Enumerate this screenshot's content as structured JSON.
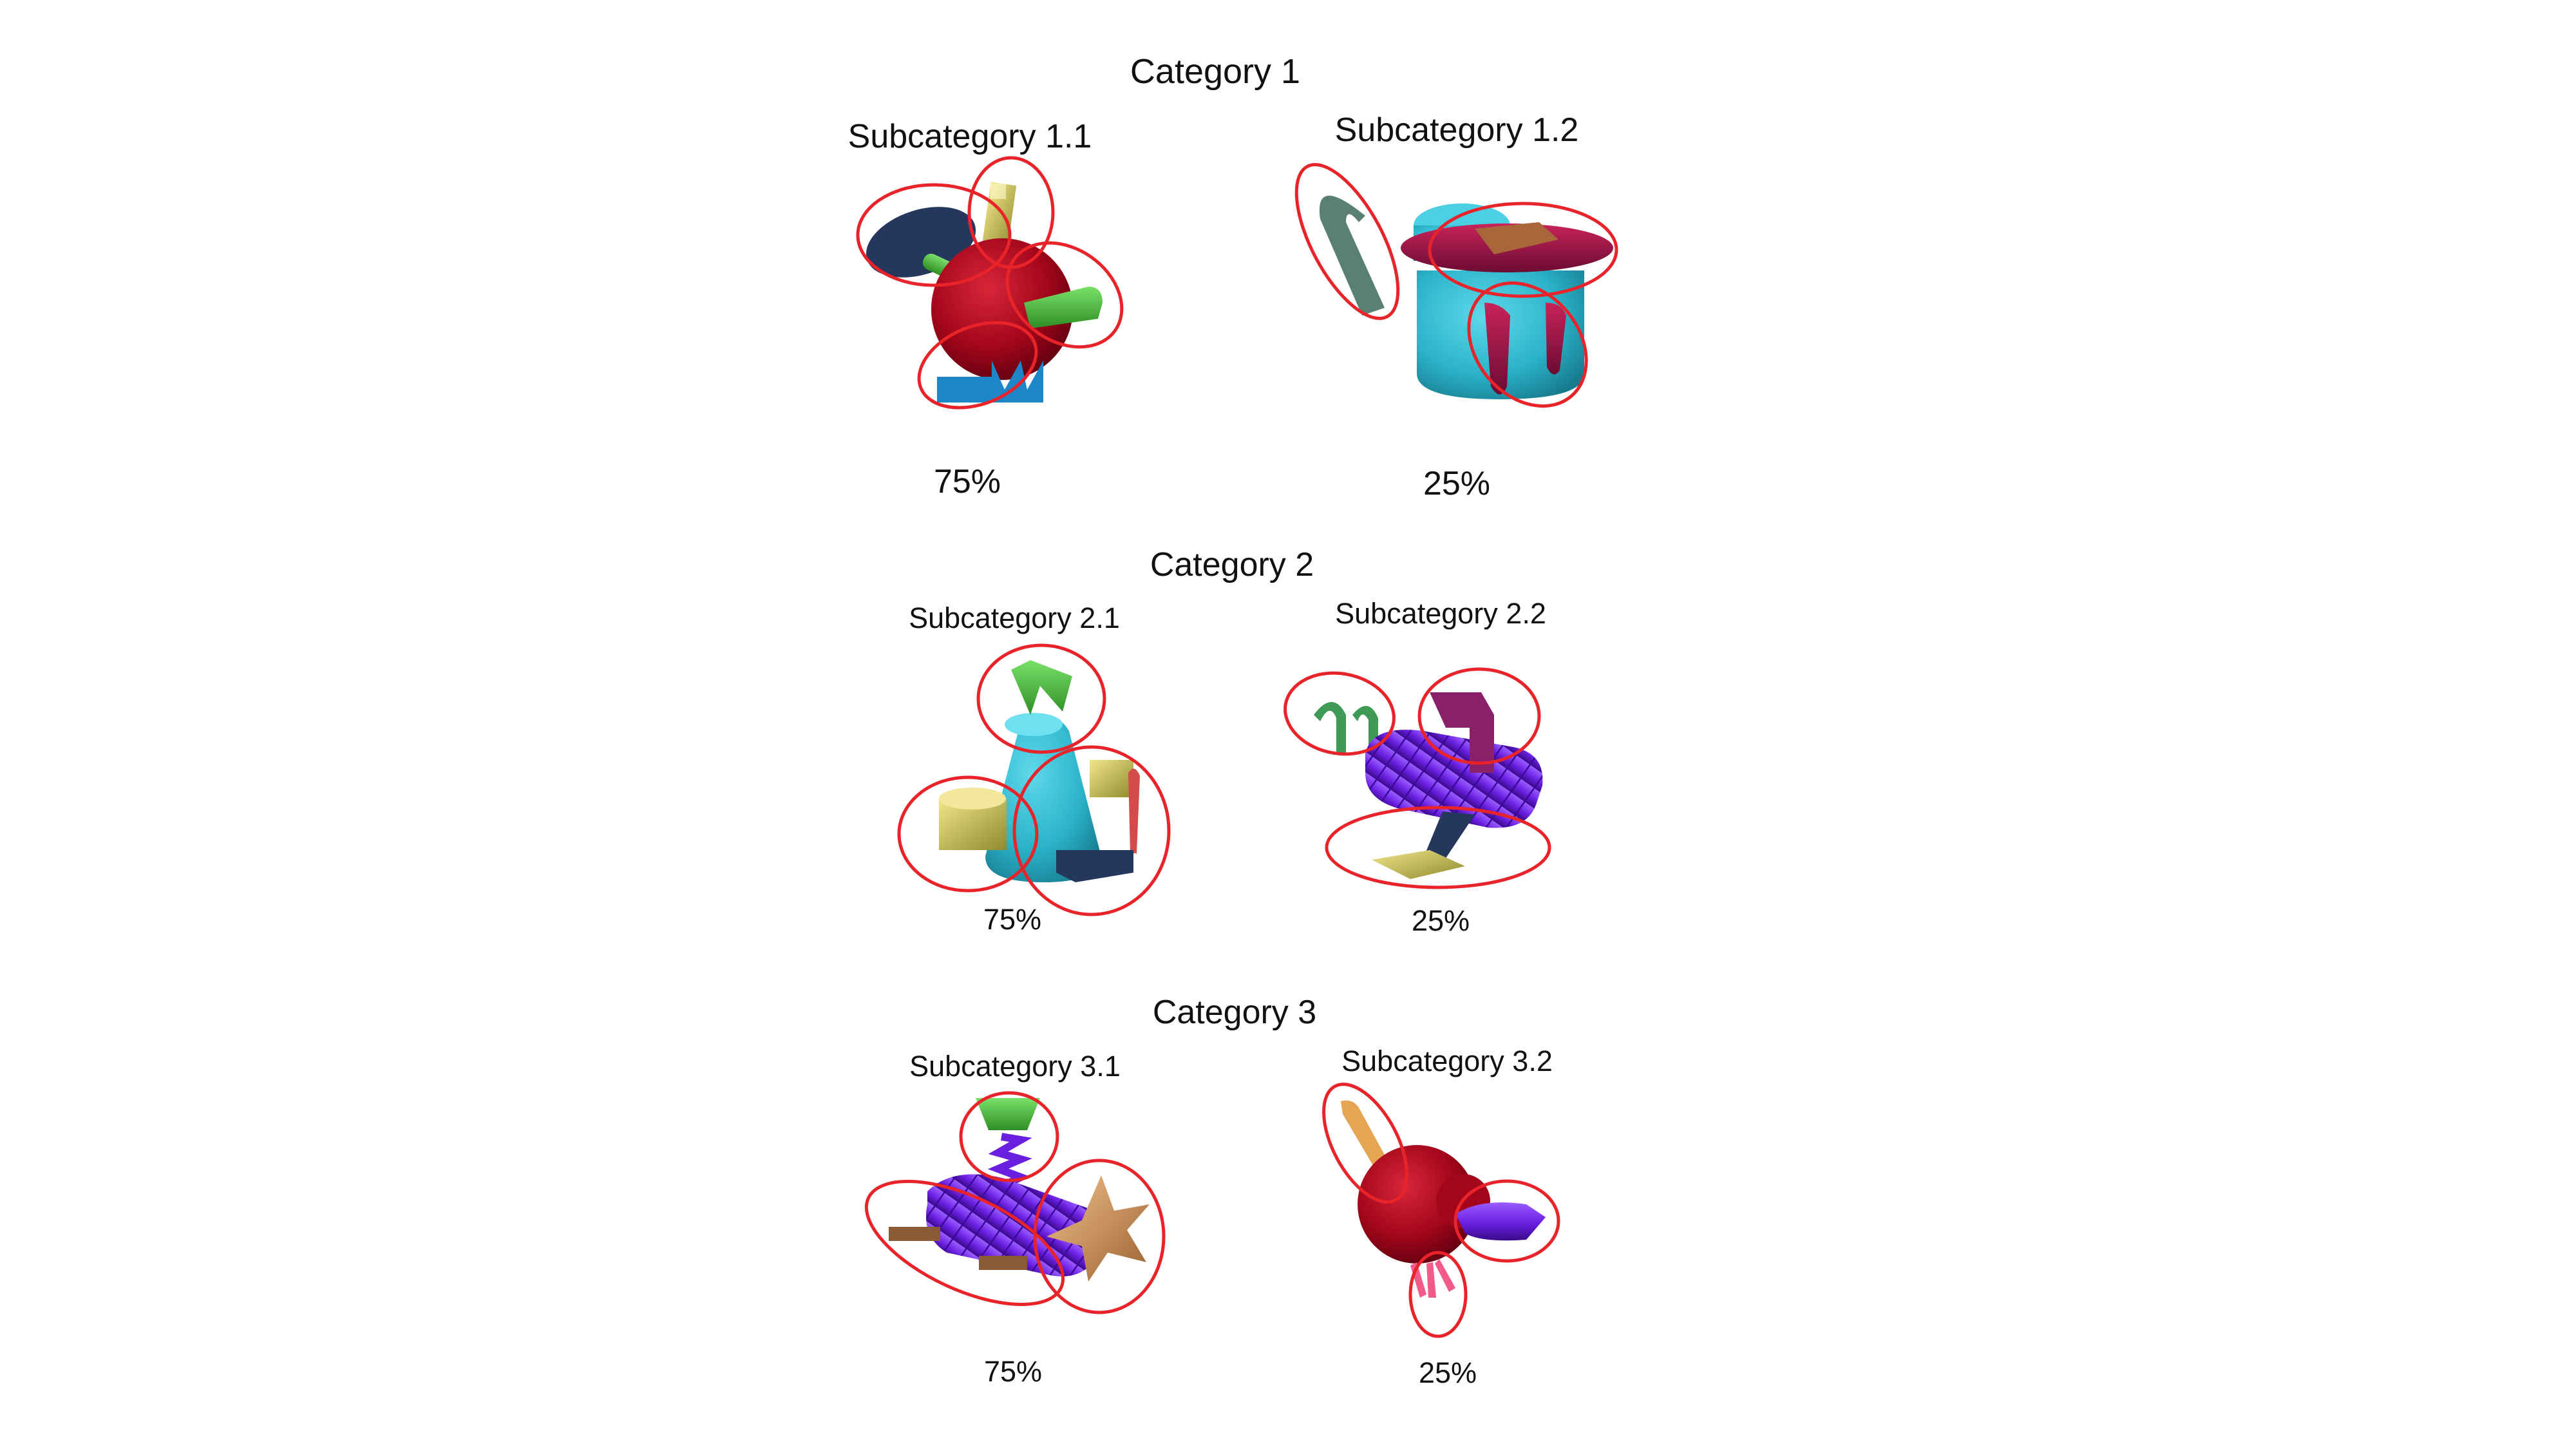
{
  "colors": {
    "outline": "#e8232a",
    "red_body": "#a3061a",
    "cyan_body": "#2bb3c9",
    "purple_body": "#6a1fe0",
    "green_part": "#3bd046",
    "olive_part": "#c2d458",
    "navy_part": "#26375e",
    "blue_part": "#1c86c9",
    "tan_part": "#c98d54",
    "magenta_part": "#8a1f6a",
    "pink_part": "#f25a8a"
  },
  "categories": [
    {
      "title": "Category 1",
      "subcategories": [
        {
          "title": "Subcategory 1.1",
          "percent": "75%",
          "object_icon": "red-sphere-assembly-icon"
        },
        {
          "title": "Subcategory 1.2",
          "percent": "25%",
          "object_icon": "cyan-teapot-assembly-icon"
        }
      ]
    },
    {
      "title": "Category 2",
      "subcategories": [
        {
          "title": "Subcategory 2.1",
          "percent": "75%",
          "object_icon": "cyan-cone-assembly-icon"
        },
        {
          "title": "Subcategory 2.2",
          "percent": "25%",
          "object_icon": "purple-tube-assembly-icon"
        }
      ]
    },
    {
      "title": "Category 3",
      "subcategories": [
        {
          "title": "Subcategory 3.1",
          "percent": "75%",
          "object_icon": "purple-tube-star-assembly-icon"
        },
        {
          "title": "Subcategory 3.2",
          "percent": "25%",
          "object_icon": "red-sphere-horn-assembly-icon"
        }
      ]
    }
  ]
}
